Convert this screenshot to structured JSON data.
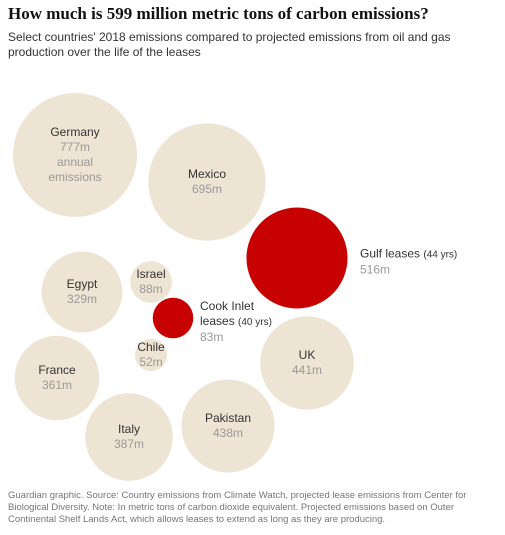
{
  "chart_data": {
    "type": "bubble",
    "title": "How much is 599 million metric tons of carbon emissions?",
    "subtitle": "Select countries' 2018 emissions compared to projected emissions from oil and gas production over the life of the leases",
    "footnote": "Guardian graphic. Source: Country emissions from Climate Watch, projected lease emissions from Center for Biological Diversity. Note: In metric tons of carbon dioxide equivalent. Projected emissions based on Outer Continental Shelf Lands Act, which allows leases to extend as long as they are producing.",
    "bubbles": [
      {
        "name": "Germany",
        "value": 777,
        "value_label": "777m",
        "note": "annual emissions",
        "color": "#ede4d3"
      },
      {
        "name": "Mexico",
        "value": 695,
        "value_label": "695m",
        "color": "#ede4d3"
      },
      {
        "name": "Gulf leases",
        "duration": "(44 yrs)",
        "value": 516,
        "value_label": "516m",
        "color": "#c70000"
      },
      {
        "name": "Egypt",
        "value": 329,
        "value_label": "329m",
        "color": "#ede4d3"
      },
      {
        "name": "Israel",
        "value": 88,
        "value_label": "88m",
        "color": "#ede4d3"
      },
      {
        "name": "Cook Inlet leases",
        "duration": "(40 yrs)",
        "value": 83,
        "value_label": "83m",
        "color": "#c70000"
      },
      {
        "name": "Chile",
        "value": 52,
        "value_label": "52m",
        "color": "#ede4d3"
      },
      {
        "name": "France",
        "value": 361,
        "value_label": "361m",
        "color": "#ede4d3"
      },
      {
        "name": "UK",
        "value": 441,
        "value_label": "441m",
        "color": "#ede4d3"
      },
      {
        "name": "Italy",
        "value": 387,
        "value_label": "387m",
        "color": "#ede4d3"
      },
      {
        "name": "Pakistan",
        "value": 438,
        "value_label": "438m",
        "color": "#ede4d3"
      }
    ]
  }
}
